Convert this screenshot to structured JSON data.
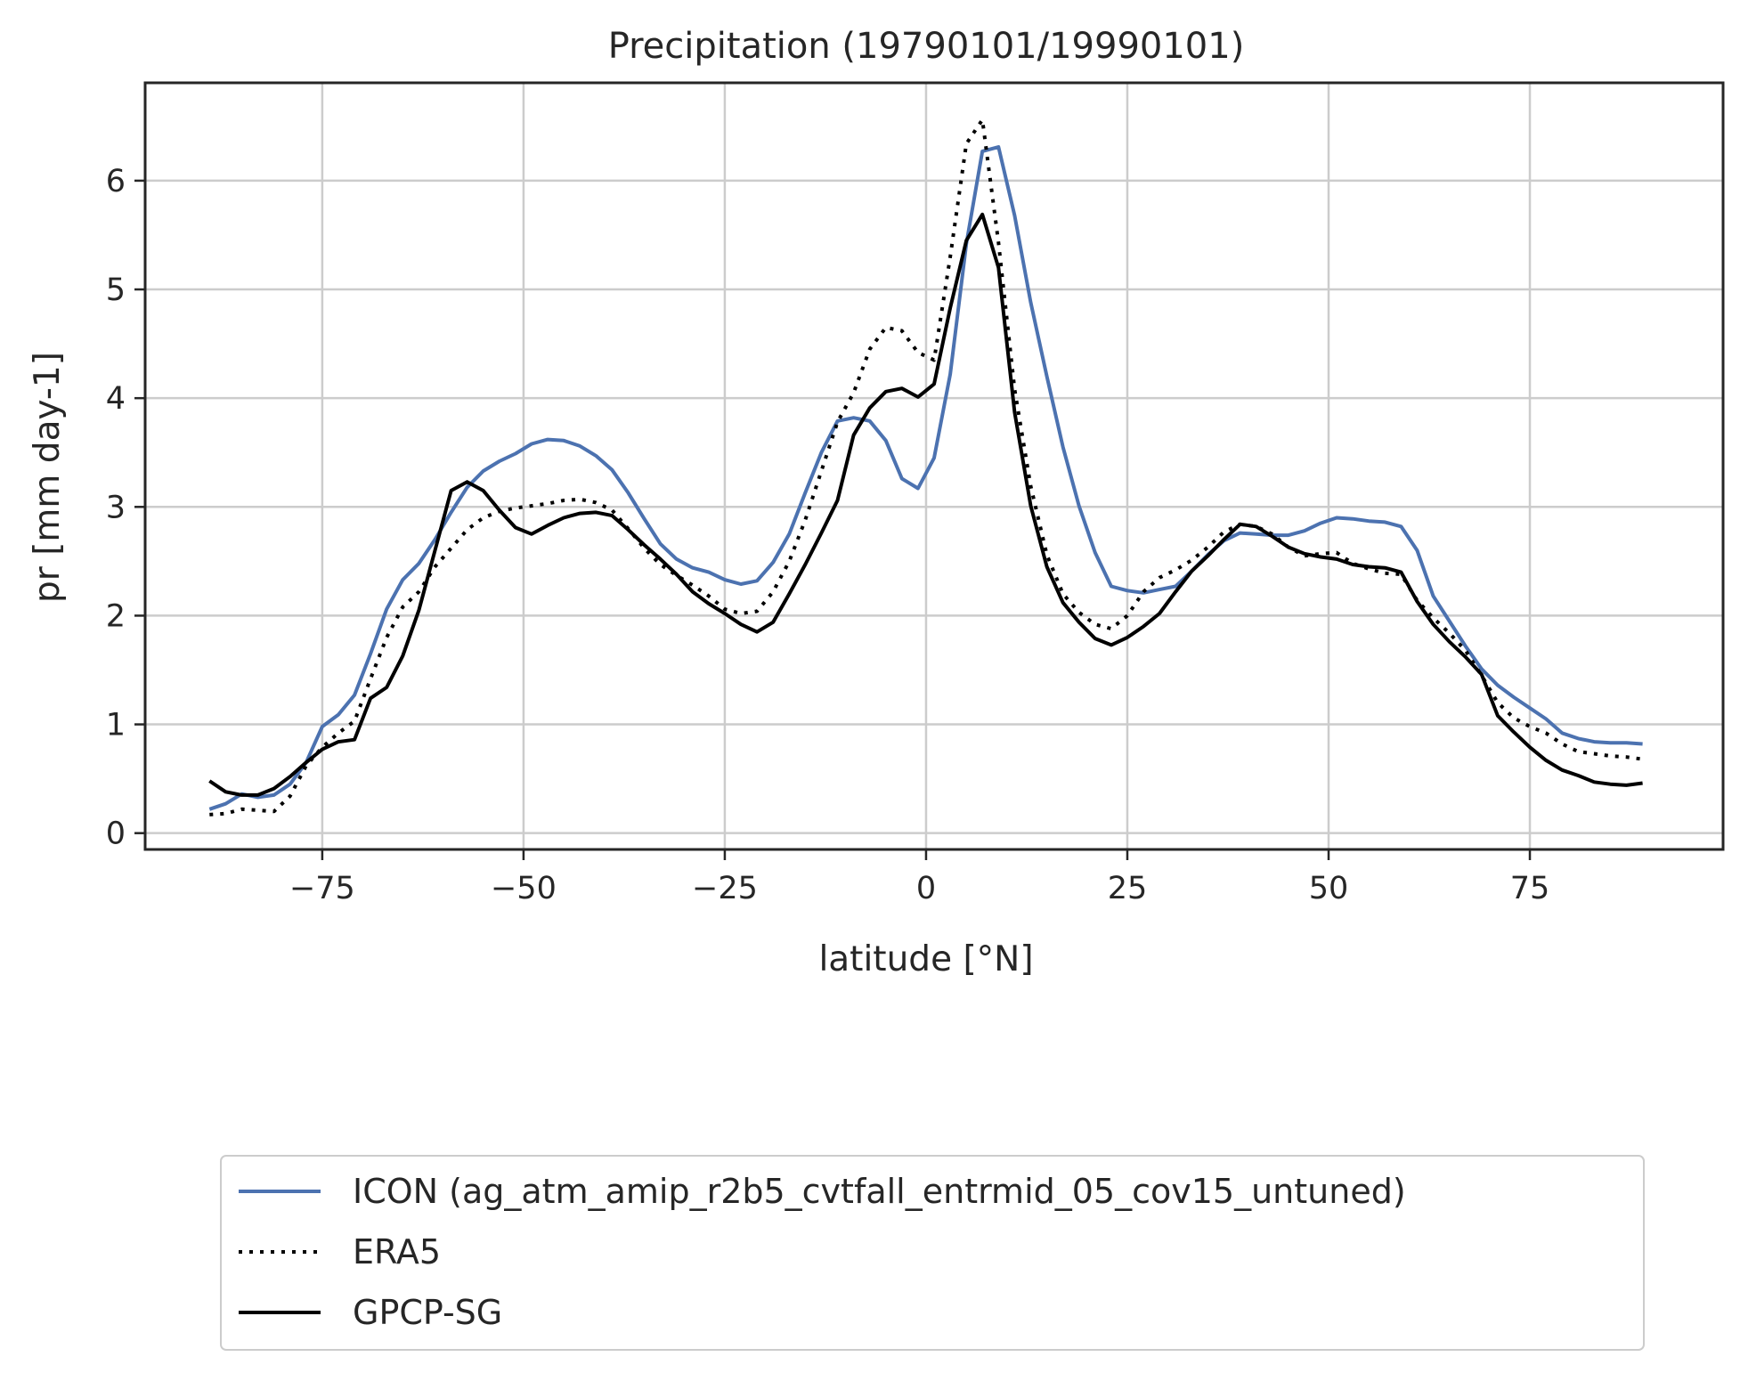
{
  "chart_data": {
    "type": "line",
    "title": "Precipitation (19790101/19990101)",
    "xlabel": "latitude [°N]",
    "ylabel": "pr [mm day-1]",
    "xlim": [
      -97,
      99
    ],
    "ylim": [
      -0.15,
      6.9
    ],
    "xticks": [
      -75,
      -50,
      -25,
      0,
      25,
      50,
      75
    ],
    "xtick_labels": [
      "−75",
      "−50",
      "−25",
      "0",
      "25",
      "50",
      "75"
    ],
    "yticks": [
      0,
      1,
      2,
      3,
      4,
      5,
      6
    ],
    "ytick_labels": [
      "0",
      "1",
      "2",
      "3",
      "4",
      "5",
      "6"
    ],
    "grid": true,
    "legend_position": "below chart",
    "series": [
      {
        "name": "ICON (ag_atm_amip_r2b5_cvtfall_entrmid_05_cov15_untuned)",
        "color": "#4c72b0",
        "style": "solid",
        "x": [
          -89,
          -87,
          -85,
          -83,
          -81,
          -79,
          -77,
          -75,
          -73,
          -71,
          -69,
          -67,
          -65,
          -63,
          -61,
          -59,
          -57,
          -55,
          -53,
          -51,
          -49,
          -47,
          -45,
          -43,
          -41,
          -39,
          -37,
          -35,
          -33,
          -31,
          -29,
          -27,
          -25,
          -23,
          -21,
          -19,
          -17,
          -15,
          -13,
          -11,
          -9,
          -7,
          -5,
          -3,
          -1,
          1,
          3,
          5,
          7,
          9,
          11,
          13,
          15,
          17,
          19,
          21,
          23,
          25,
          27,
          29,
          31,
          33,
          35,
          37,
          39,
          41,
          43,
          45,
          47,
          49,
          51,
          53,
          55,
          57,
          59,
          61,
          63,
          65,
          67,
          69,
          71,
          73,
          75,
          77,
          79,
          81,
          83,
          85,
          87,
          89
        ],
        "y": [
          0.22,
          0.27,
          0.36,
          0.33,
          0.35,
          0.45,
          0.65,
          0.98,
          1.09,
          1.27,
          1.65,
          2.06,
          2.33,
          2.48,
          2.7,
          2.95,
          3.18,
          3.33,
          3.42,
          3.49,
          3.58,
          3.62,
          3.61,
          3.56,
          3.47,
          3.34,
          3.13,
          2.89,
          2.66,
          2.52,
          2.44,
          2.4,
          2.33,
          2.29,
          2.32,
          2.49,
          2.75,
          3.13,
          3.5,
          3.79,
          3.82,
          3.79,
          3.61,
          3.26,
          3.17,
          3.45,
          4.22,
          5.42,
          6.27,
          6.31,
          5.68,
          4.88,
          4.2,
          3.55,
          3.01,
          2.58,
          2.27,
          2.23,
          2.21,
          2.24,
          2.27,
          2.41,
          2.56,
          2.69,
          2.76,
          2.75,
          2.74,
          2.74,
          2.78,
          2.85,
          2.9,
          2.89,
          2.87,
          2.86,
          2.82,
          2.6,
          2.18,
          1.95,
          1.72,
          1.51,
          1.36,
          1.25,
          1.15,
          1.05,
          0.92,
          0.87,
          0.84,
          0.83,
          0.83,
          0.82
        ]
      },
      {
        "name": "ERA5",
        "color": "#000000",
        "style": "dotted",
        "x": [
          -89,
          -87,
          -85,
          -83,
          -81,
          -79,
          -77,
          -75,
          -73,
          -71,
          -69,
          -67,
          -65,
          -63,
          -61,
          -59,
          -57,
          -55,
          -53,
          -51,
          -49,
          -47,
          -45,
          -43,
          -41,
          -39,
          -37,
          -35,
          -33,
          -31,
          -29,
          -27,
          -25,
          -23,
          -21,
          -19,
          -17,
          -15,
          -13,
          -11,
          -9,
          -7,
          -5,
          -3,
          -1,
          1,
          3,
          5,
          7,
          9,
          11,
          13,
          15,
          17,
          19,
          21,
          23,
          25,
          27,
          29,
          31,
          33,
          35,
          37,
          39,
          41,
          43,
          45,
          47,
          49,
          51,
          53,
          55,
          57,
          59,
          61,
          63,
          65,
          67,
          69,
          71,
          73,
          75,
          77,
          79,
          81,
          83,
          85,
          87,
          89
        ],
        "y": [
          0.17,
          0.18,
          0.22,
          0.21,
          0.2,
          0.34,
          0.62,
          0.79,
          0.92,
          1.03,
          1.42,
          1.8,
          2.08,
          2.22,
          2.45,
          2.62,
          2.79,
          2.9,
          2.96,
          2.99,
          3.01,
          3.03,
          3.06,
          3.07,
          3.04,
          2.97,
          2.8,
          2.62,
          2.47,
          2.37,
          2.28,
          2.18,
          2.06,
          2.02,
          2.04,
          2.22,
          2.5,
          2.88,
          3.33,
          3.78,
          4.05,
          4.45,
          4.65,
          4.62,
          4.42,
          4.35,
          5.3,
          6.34,
          6.56,
          5.43,
          4.08,
          3.19,
          2.56,
          2.2,
          2.03,
          1.92,
          1.88,
          2.0,
          2.22,
          2.35,
          2.42,
          2.51,
          2.63,
          2.77,
          2.84,
          2.82,
          2.75,
          2.63,
          2.55,
          2.57,
          2.58,
          2.48,
          2.43,
          2.39,
          2.38,
          2.14,
          1.98,
          1.84,
          1.68,
          1.45,
          1.2,
          1.06,
          0.98,
          0.92,
          0.82,
          0.75,
          0.73,
          0.71,
          0.7,
          0.68
        ]
      },
      {
        "name": "GPCP-SG",
        "color": "#000000",
        "style": "solid",
        "x": [
          -89,
          -87,
          -85,
          -83,
          -81,
          -79,
          -77,
          -75,
          -73,
          -71,
          -69,
          -67,
          -65,
          -63,
          -61,
          -59,
          -57,
          -55,
          -53,
          -51,
          -49,
          -47,
          -45,
          -43,
          -41,
          -39,
          -37,
          -35,
          -33,
          -31,
          -29,
          -27,
          -25,
          -23,
          -21,
          -19,
          -17,
          -15,
          -13,
          -11,
          -9,
          -7,
          -5,
          -3,
          -1,
          1,
          3,
          5,
          7,
          9,
          11,
          13,
          15,
          17,
          19,
          21,
          23,
          25,
          27,
          29,
          31,
          33,
          35,
          37,
          39,
          41,
          43,
          45,
          47,
          49,
          51,
          53,
          55,
          57,
          59,
          61,
          63,
          65,
          67,
          69,
          71,
          73,
          75,
          77,
          79,
          81,
          83,
          85,
          87,
          89
        ],
        "y": [
          0.48,
          0.38,
          0.35,
          0.35,
          0.41,
          0.52,
          0.65,
          0.77,
          0.84,
          0.86,
          1.24,
          1.34,
          1.63,
          2.05,
          2.6,
          3.15,
          3.23,
          3.15,
          2.97,
          2.81,
          2.75,
          2.83,
          2.9,
          2.94,
          2.95,
          2.92,
          2.79,
          2.65,
          2.52,
          2.38,
          2.22,
          2.11,
          2.02,
          1.92,
          1.85,
          1.94,
          2.2,
          2.47,
          2.76,
          3.06,
          3.66,
          3.91,
          4.06,
          4.09,
          4.01,
          4.13,
          4.83,
          5.45,
          5.69,
          5.2,
          3.87,
          3.01,
          2.45,
          2.12,
          1.94,
          1.79,
          1.73,
          1.8,
          1.9,
          2.02,
          2.22,
          2.41,
          2.55,
          2.7,
          2.84,
          2.82,
          2.73,
          2.63,
          2.57,
          2.54,
          2.52,
          2.47,
          2.45,
          2.44,
          2.4,
          2.13,
          1.92,
          1.76,
          1.62,
          1.46,
          1.08,
          0.93,
          0.79,
          0.67,
          0.58,
          0.53,
          0.47,
          0.45,
          0.44,
          0.46
        ]
      }
    ]
  }
}
